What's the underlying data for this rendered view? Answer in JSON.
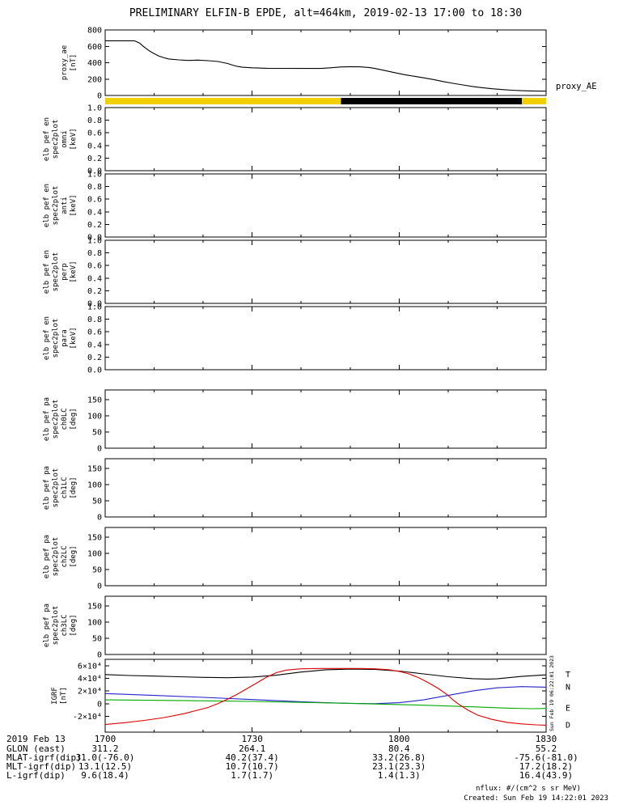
{
  "title": "PRELIMINARY ELFIN-B EPDE, alt=464km, 2019-02-13 17:00 to 18:30",
  "annotations": {
    "proxy_ae_right_label": "proxy_AE",
    "side_timestamp": "Sun Feb 19 06:22:01 2023",
    "nflux_note": "nflux: #/(cm^2 s sr MeV)",
    "created_note": "Created: Sun Feb 19 14:22:01 2023"
  },
  "x_axis": {
    "range_minutes": [
      0,
      90
    ],
    "ticks_minutes": [
      0,
      30,
      60,
      90
    ],
    "tick_labels": [
      "1700",
      "1730",
      "1800",
      "1830"
    ],
    "minor_step_minutes": 10,
    "date_label": "2019 Feb 13"
  },
  "footer": {
    "rows": [
      {
        "label": "2019 Feb 13",
        "values": [
          "1700",
          "1730",
          "1800",
          "1830"
        ]
      },
      {
        "label": "GLON (east)",
        "values": [
          "311.2",
          "264.1",
          "80.4",
          "55.2"
        ]
      },
      {
        "label": "MLAT-igrf(dip)",
        "values": [
          "31.0(-76.0)",
          "40.2(37.4)",
          "33.2(26.8)",
          "-75.6(-81.0)"
        ]
      },
      {
        "label": "MLT-igrf(dip)",
        "values": [
          "13.1(12.5)",
          "10.7(10.7)",
          "23.1(23.3)",
          "17.2(18.2)"
        ]
      },
      {
        "label": "L-igrf(dip)",
        "values": [
          "9.6(18.4)",
          "1.7(1.7)",
          "1.4(1.3)",
          "16.4(43.9)"
        ]
      }
    ]
  },
  "colors": {
    "yellow": "#f0d000",
    "black": "#000000",
    "T": "#000000",
    "N": "#2222cc",
    "E": "#00aa00",
    "D": "#dd0000"
  },
  "chart_data": [
    {
      "id": "proxy_ae",
      "type": "line",
      "ylabel_lines": [
        "proxy_ae",
        "[nT]"
      ],
      "ylim": [
        0,
        800
      ],
      "yticks": [
        0,
        200,
        400,
        600,
        800
      ],
      "ytick_labels": [
        "0",
        "200",
        "400",
        "600",
        "800"
      ],
      "series": [
        {
          "name": "proxy_AE",
          "color": "#000000",
          "points": [
            [
              0,
              668
            ],
            [
              6,
              668
            ],
            [
              7,
              640
            ],
            [
              8,
              590
            ],
            [
              9,
              545
            ],
            [
              10,
              510
            ],
            [
              11,
              480
            ],
            [
              12,
              460
            ],
            [
              13,
              445
            ],
            [
              15,
              435
            ],
            [
              17,
              428
            ],
            [
              19,
              432
            ],
            [
              21,
              425
            ],
            [
              23,
              415
            ],
            [
              25,
              390
            ],
            [
              26,
              370
            ],
            [
              27,
              355
            ],
            [
              28,
              345
            ],
            [
              30,
              338
            ],
            [
              33,
              332
            ],
            [
              44,
              330
            ],
            [
              46,
              338
            ],
            [
              48,
              348
            ],
            [
              50,
              352
            ],
            [
              52,
              350
            ],
            [
              54,
              340
            ],
            [
              55,
              330
            ],
            [
              57,
              305
            ],
            [
              59,
              280
            ],
            [
              61,
              255
            ],
            [
              63,
              235
            ],
            [
              65,
              215
            ],
            [
              67,
              195
            ],
            [
              69,
              170
            ],
            [
              71,
              148
            ],
            [
              73,
              128
            ],
            [
              75,
              110
            ],
            [
              77,
              95
            ],
            [
              79,
              82
            ],
            [
              81,
              72
            ],
            [
              83,
              64
            ],
            [
              85,
              58
            ],
            [
              87,
              55
            ],
            [
              90,
              52
            ]
          ]
        }
      ]
    },
    {
      "id": "orbit_bar",
      "type": "strip",
      "segments": [
        {
          "from": 0.0,
          "to": 0.535,
          "color": "#f0d000"
        },
        {
          "from": 0.535,
          "to": 0.945,
          "color": "#000000"
        },
        {
          "from": 0.945,
          "to": 1.0,
          "color": "#f0d000"
        }
      ]
    },
    {
      "id": "en_omni",
      "type": "empty",
      "ylabel_lines": [
        "elb pef en",
        "spec2plot",
        "omni",
        "[keV]"
      ],
      "ylim": [
        0,
        1
      ],
      "yticks": [
        0,
        0.2,
        0.4,
        0.6,
        0.8,
        1
      ],
      "ytick_labels": [
        "0.0",
        "0.2",
        "0.4",
        "0.6",
        "0.8",
        "1.0"
      ]
    },
    {
      "id": "en_anti",
      "type": "empty",
      "ylabel_lines": [
        "elb pef en",
        "spec2plot",
        "anti",
        "[keV]"
      ],
      "ylim": [
        0,
        1
      ],
      "yticks": [
        0,
        0.2,
        0.4,
        0.6,
        0.8,
        1
      ],
      "ytick_labels": [
        "0.0",
        "0.2",
        "0.4",
        "0.6",
        "0.8",
        "1.0"
      ]
    },
    {
      "id": "en_perp",
      "type": "empty",
      "ylabel_lines": [
        "elb pef en",
        "spec2plot",
        "perp",
        "[keV]"
      ],
      "ylim": [
        0,
        1
      ],
      "yticks": [
        0,
        0.2,
        0.4,
        0.6,
        0.8,
        1
      ],
      "ytick_labels": [
        "0.0",
        "0.2",
        "0.4",
        "0.6",
        "0.8",
        "1.0"
      ]
    },
    {
      "id": "en_para",
      "type": "empty",
      "ylabel_lines": [
        "elb pef en",
        "spec2plot",
        "para",
        "[keV]"
      ],
      "ylim": [
        0,
        1
      ],
      "yticks": [
        0,
        0.2,
        0.4,
        0.6,
        0.8,
        1
      ],
      "ytick_labels": [
        "0.0",
        "0.2",
        "0.4",
        "0.6",
        "0.8",
        "1.0"
      ]
    },
    {
      "id": "pa_ch0",
      "type": "empty",
      "ylabel_lines": [
        "elb pef pa",
        "spec2plot",
        "ch0LC",
        "[deg]"
      ],
      "ylim": [
        0,
        180
      ],
      "yticks": [
        0,
        50,
        100,
        150
      ],
      "ytick_labels": [
        "0",
        "50",
        "100",
        "150"
      ]
    },
    {
      "id": "pa_ch1",
      "type": "empty",
      "ylabel_lines": [
        "elb pef pa",
        "spec2plot",
        "ch1LC",
        "[deg]"
      ],
      "ylim": [
        0,
        180
      ],
      "yticks": [
        0,
        50,
        100,
        150
      ],
      "ytick_labels": [
        "0",
        "50",
        "100",
        "150"
      ]
    },
    {
      "id": "pa_ch2",
      "type": "empty",
      "ylabel_lines": [
        "elb pef pa",
        "spec2plot",
        "ch2LC",
        "[deg]"
      ],
      "ylim": [
        0,
        180
      ],
      "yticks": [
        0,
        50,
        100,
        150
      ],
      "ytick_labels": [
        "0",
        "50",
        "100",
        "150"
      ]
    },
    {
      "id": "pa_ch3",
      "type": "empty",
      "ylabel_lines": [
        "elb pef pa",
        "spec2plot",
        "ch3LC",
        "[deg]"
      ],
      "ylim": [
        0,
        180
      ],
      "yticks": [
        0,
        50,
        100,
        150
      ],
      "ytick_labels": [
        "0",
        "50",
        "100",
        "150"
      ]
    },
    {
      "id": "igrf",
      "type": "line",
      "ylabel_lines": [
        "IGRF",
        "[nT]"
      ],
      "ylim": [
        -45000,
        70000
      ],
      "yticks": [
        -20000,
        0,
        20000,
        40000,
        60000
      ],
      "ytick_labels": [
        "-2×10⁴",
        "0",
        "2×10⁴",
        "4×10⁴",
        "6×10⁴"
      ],
      "legend": [
        "T",
        "N",
        "E",
        "D"
      ],
      "series": [
        {
          "name": "T",
          "color": "#000000",
          "points": [
            [
              0,
              46000
            ],
            [
              5,
              44500
            ],
            [
              10,
              43500
            ],
            [
              15,
              42500
            ],
            [
              20,
              41500
            ],
            [
              25,
              41000
            ],
            [
              30,
              42000
            ],
            [
              35,
              45000
            ],
            [
              40,
              50000
            ],
            [
              45,
              53500
            ],
            [
              50,
              54500
            ],
            [
              55,
              54000
            ],
            [
              60,
              51500
            ],
            [
              65,
              47000
            ],
            [
              70,
              42500
            ],
            [
              75,
              39500
            ],
            [
              78,
              38800
            ],
            [
              80,
              39200
            ],
            [
              85,
              43000
            ],
            [
              90,
              45500
            ]
          ]
        },
        {
          "name": "N",
          "color": "#2222cc",
          "points": [
            [
              0,
              16000
            ],
            [
              10,
              13000
            ],
            [
              20,
              10000
            ],
            [
              30,
              6500
            ],
            [
              40,
              3000
            ],
            [
              45,
              1500
            ],
            [
              50,
              500
            ],
            [
              55,
              0
            ],
            [
              60,
              1500
            ],
            [
              65,
              6000
            ],
            [
              70,
              13000
            ],
            [
              75,
              20000
            ],
            [
              80,
              25000
            ],
            [
              85,
              27000
            ],
            [
              90,
              26000
            ]
          ]
        },
        {
          "name": "E",
          "color": "#00aa00",
          "points": [
            [
              0,
              6000
            ],
            [
              15,
              5000
            ],
            [
              30,
              3500
            ],
            [
              40,
              2000
            ],
            [
              50,
              500
            ],
            [
              55,
              -500
            ],
            [
              65,
              -2500
            ],
            [
              75,
              -5000
            ],
            [
              82,
              -7000
            ],
            [
              87,
              -8000
            ],
            [
              90,
              -7500
            ]
          ]
        },
        {
          "name": "D",
          "color": "#dd0000",
          "points": [
            [
              0,
              -33000
            ],
            [
              4,
              -30000
            ],
            [
              8,
              -26500
            ],
            [
              12,
              -22000
            ],
            [
              16,
              -16000
            ],
            [
              19,
              -10000
            ],
            [
              21,
              -6000
            ],
            [
              23,
              0
            ],
            [
              25,
              7000
            ],
            [
              27,
              15000
            ],
            [
              29,
              24000
            ],
            [
              31,
              33000
            ],
            [
              33,
              42000
            ],
            [
              35,
              49000
            ],
            [
              37,
              53000
            ],
            [
              40,
              55000
            ],
            [
              44,
              55500
            ],
            [
              48,
              55500
            ],
            [
              52,
              55500
            ],
            [
              55,
              55000
            ],
            [
              58,
              53500
            ],
            [
              60,
              51000
            ],
            [
              62,
              47000
            ],
            [
              64,
              41000
            ],
            [
              66,
              33000
            ],
            [
              68,
              24000
            ],
            [
              70,
              13000
            ],
            [
              71,
              6000
            ],
            [
              72,
              0
            ],
            [
              74,
              -10000
            ],
            [
              76,
              -18000
            ],
            [
              79,
              -25000
            ],
            [
              82,
              -29500
            ],
            [
              85,
              -32000
            ],
            [
              88,
              -33500
            ],
            [
              90,
              -34000
            ]
          ]
        }
      ]
    }
  ]
}
